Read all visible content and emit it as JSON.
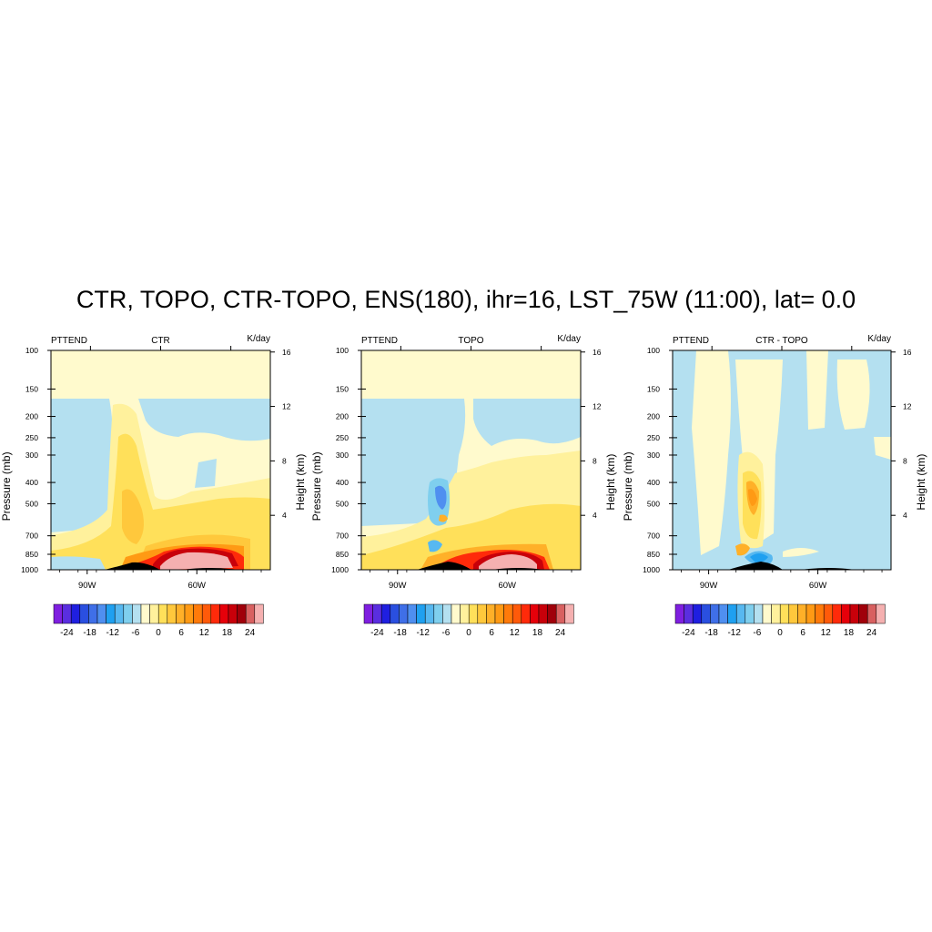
{
  "figure": {
    "title": "CTR, TOPO, CTR-TOPO, ENS(180), ihr=16, LST_75W (11:00), lat=  0.0"
  },
  "colors": {
    "palette": [
      "#7f1fe0",
      "#5a2ee0",
      "#1f1fe0",
      "#2a4fe0",
      "#3f6fe8",
      "#4f8ff0",
      "#1fa0f0",
      "#57b8f0",
      "#7fcfee",
      "#b4e0f0",
      "#fffacd",
      "#fff19c",
      "#ffe05a",
      "#ffc83c",
      "#ffb028",
      "#ff9a14",
      "#ff7a0a",
      "#ff5a0a",
      "#ff2a0a",
      "#e6000a",
      "#c8000a",
      "#a0000a",
      "#d86060",
      "#f5b0b0"
    ],
    "terrain": "#000000"
  },
  "chart_data": [
    {
      "type": "heatmap",
      "name": "CTR",
      "left_label": "PTTEND",
      "center_label": "CTR",
      "right_label": "K/day",
      "ylabel": "Pressure (mb)",
      "y2label": "Height (km)",
      "x_ticks": [
        "90W",
        "60W"
      ],
      "y_ticks": [
        100,
        150,
        200,
        250,
        300,
        400,
        500,
        700,
        850,
        1000
      ],
      "y2_ticks": [
        4,
        8,
        12,
        16
      ],
      "colorbar_labels": [
        "-24",
        "-18",
        "-12",
        "-6",
        "0",
        "6",
        "12",
        "18",
        "24"
      ]
    },
    {
      "type": "heatmap",
      "name": "TOPO",
      "left_label": "PTTEND",
      "center_label": "TOPO",
      "right_label": "K/day",
      "ylabel": "Pressure (mb)",
      "y2label": "Height (km)",
      "x_ticks": [
        "90W",
        "60W"
      ],
      "y_ticks": [
        100,
        150,
        200,
        250,
        300,
        400,
        500,
        700,
        850,
        1000
      ],
      "y2_ticks": [
        4,
        8,
        12,
        16
      ],
      "colorbar_labels": [
        "-24",
        "-18",
        "-12",
        "-6",
        "0",
        "6",
        "12",
        "18",
        "24"
      ]
    },
    {
      "type": "heatmap",
      "name": "CTR - TOPO",
      "left_label": "PTTEND",
      "center_label": "CTR - TOPO",
      "right_label": "K/day",
      "ylabel": "Pressure (mb)",
      "y2label": "Height (km)",
      "x_ticks": [
        "90W",
        "60W"
      ],
      "y_ticks": [
        100,
        150,
        200,
        250,
        300,
        400,
        500,
        700,
        850,
        1000
      ],
      "y2_ticks": [
        4,
        8,
        12,
        16
      ],
      "colorbar_labels": [
        "-24",
        "-18",
        "-12",
        "-6",
        "0",
        "6",
        "12",
        "18",
        "24"
      ]
    }
  ]
}
